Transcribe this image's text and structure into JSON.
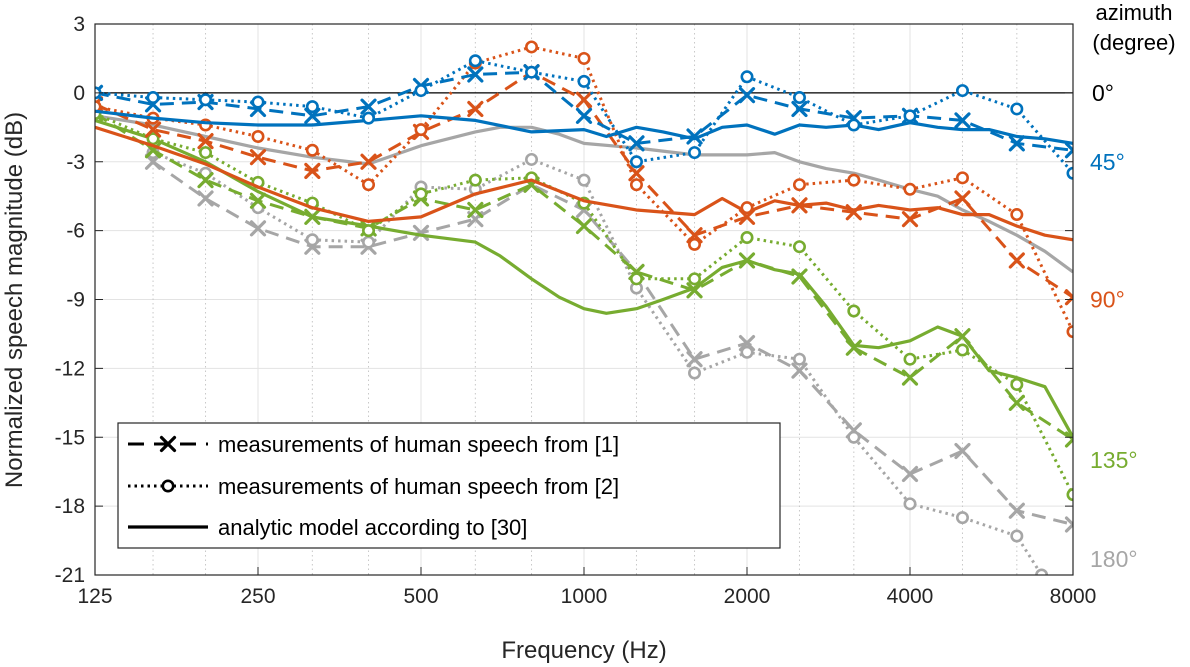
{
  "chart_data": {
    "type": "line",
    "xlabel": "Frequency (Hz)",
    "ylabel": "Normalized speech magnitude (dB)",
    "xscale": "log",
    "xlim": [
      125,
      8000
    ],
    "ylim": [
      -21,
      3
    ],
    "xticks": [
      125,
      250,
      500,
      1000,
      2000,
      4000,
      8000
    ],
    "xtick_labels": [
      "125",
      "250",
      "500",
      "1000",
      "2000",
      "4000",
      "8000"
    ],
    "minor_x_gridlines": [
      160,
      200,
      315,
      400,
      630,
      800,
      1250,
      1600,
      2500,
      3150,
      5000,
      6300
    ],
    "yticks": [
      3,
      0,
      -3,
      -6,
      -9,
      -12,
      -15,
      -18,
      -21
    ],
    "ytick_labels": [
      "3",
      "0",
      "-3",
      "-6",
      "-9",
      "-12",
      "-15",
      "-18",
      "-21"
    ],
    "grid": true,
    "zero_line": 0,
    "right_annotation_title": [
      "azimuth",
      "(degree)"
    ],
    "legend": {
      "placement": "bottom-left",
      "entries": [
        {
          "label": "measurements of human speech from [1]",
          "style": "dashed-x"
        },
        {
          "label": "measurements of human speech from [2]",
          "style": "dotted-o"
        },
        {
          "label": "analytic model according to [30]",
          "style": "solid"
        }
      ]
    },
    "colors": {
      "0": "#0072BD",
      "45": "#0072BD",
      "90": "#D95319",
      "135": "#77AC30",
      "180": "#A6A6A6"
    },
    "series": [
      {
        "azimuth_label": "45°",
        "color": "#0072BD",
        "label_y": -3,
        "dashed_x": {
          "x": [
            125,
            160,
            200,
            250,
            315,
            400,
            500,
            630,
            800,
            1000,
            1250,
            1600,
            2000,
            2500,
            3150,
            4000,
            5000,
            6300,
            8000
          ],
          "y": [
            0,
            -0.5,
            -0.4,
            -0.7,
            -1.0,
            -0.6,
            0.3,
            0.8,
            0.9,
            -1.0,
            -2.2,
            -1.9,
            -0.1,
            -0.7,
            -1.1,
            -1.0,
            -1.2,
            -2.2,
            -2.5
          ]
        },
        "dotted_o": {
          "x": [
            125,
            160,
            200,
            250,
            315,
            400,
            500,
            630,
            800,
            1000,
            1250,
            1600,
            2000,
            2500,
            3150,
            4000,
            5000,
            6300,
            8000
          ],
          "y": [
            0,
            -0.2,
            -0.3,
            -0.4,
            -0.6,
            -1.1,
            0.1,
            1.4,
            0.9,
            0.5,
            -3.0,
            -2.6,
            0.7,
            -0.2,
            -1.4,
            -1.0,
            0.1,
            -0.7,
            -3.5
          ]
        },
        "model": {
          "x": [
            125,
            160,
            200,
            250,
            315,
            400,
            500,
            630,
            800,
            1000,
            1100,
            1250,
            1400,
            1600,
            1800,
            2000,
            2250,
            2500,
            2800,
            3150,
            3500,
            4000,
            4500,
            5000,
            5600,
            6300,
            7100,
            8000
          ],
          "y": [
            -0.8,
            -1.1,
            -1.3,
            -1.4,
            -1.4,
            -1.2,
            -1.0,
            -1.2,
            -1.7,
            -1.6,
            -1.9,
            -1.5,
            -1.7,
            -2.0,
            -1.5,
            -1.4,
            -1.8,
            -1.4,
            -1.5,
            -1.4,
            -1.6,
            -1.3,
            -1.5,
            -1.6,
            -1.6,
            -1.9,
            -2.0,
            -2.2
          ]
        }
      },
      {
        "azimuth_label": "90°",
        "color": "#D95319",
        "label_y": -9,
        "dashed_x": {
          "x": [
            125,
            160,
            200,
            250,
            315,
            400,
            500,
            630,
            800,
            1000,
            1250,
            1600,
            2000,
            2500,
            3150,
            4000,
            5000,
            6300,
            8000
          ],
          "y": [
            -0.5,
            -1.6,
            -2.1,
            -2.8,
            -3.4,
            -3.0,
            -1.7,
            -0.7,
            0.9,
            -0.3,
            -3.5,
            -6.2,
            -5.4,
            -4.9,
            -5.2,
            -5.5,
            -4.6,
            -7.3,
            -8.9
          ]
        },
        "dotted_o": {
          "x": [
            125,
            160,
            200,
            250,
            315,
            400,
            500,
            630,
            800,
            1000,
            1250,
            1600,
            2000,
            2500,
            3150,
            4000,
            5000,
            6300,
            8000
          ],
          "y": [
            -0.6,
            -1.1,
            -1.4,
            -1.9,
            -2.5,
            -4.0,
            -1.6,
            1.3,
            2.0,
            1.5,
            -4.0,
            -6.6,
            -5.0,
            -4.0,
            -3.8,
            -4.2,
            -3.7,
            -5.3,
            -10.4
          ]
        },
        "model": {
          "x": [
            125,
            160,
            200,
            250,
            315,
            400,
            500,
            630,
            800,
            1000,
            1250,
            1600,
            1800,
            2000,
            2250,
            2500,
            2800,
            3150,
            3500,
            4000,
            4500,
            5000,
            5600,
            6300,
            7100,
            8000
          ],
          "y": [
            -1.5,
            -2.3,
            -3.1,
            -4.1,
            -5.0,
            -5.6,
            -5.4,
            -4.4,
            -3.8,
            -4.7,
            -5.1,
            -5.3,
            -4.6,
            -5.2,
            -4.7,
            -4.9,
            -4.8,
            -5.1,
            -4.9,
            -5.1,
            -5.0,
            -5.3,
            -5.3,
            -5.8,
            -6.2,
            -6.4
          ]
        }
      },
      {
        "azimuth_label": "135°",
        "color": "#77AC30",
        "label_y": -16,
        "dashed_x": {
          "x": [
            125,
            160,
            200,
            250,
            315,
            400,
            500,
            630,
            800,
            1000,
            1250,
            1600,
            2000,
            2500,
            3150,
            4000,
            5000,
            6300,
            8000
          ],
          "y": [
            -0.9,
            -2.5,
            -3.8,
            -4.7,
            -5.4,
            -5.9,
            -4.6,
            -5.1,
            -4.0,
            -5.8,
            -7.8,
            -8.6,
            -7.3,
            -8.0,
            -11.1,
            -12.4,
            -10.6,
            -13.5,
            -15.1
          ]
        },
        "dotted_o": {
          "x": [
            125,
            160,
            200,
            250,
            315,
            400,
            500,
            630,
            800,
            1000,
            1250,
            1600,
            2000,
            2500,
            3150,
            4000,
            5000,
            6300,
            8000
          ],
          "y": [
            -0.9,
            -2.0,
            -2.6,
            -3.9,
            -4.8,
            -6.0,
            -4.4,
            -3.8,
            -3.7,
            -4.8,
            -8.1,
            -8.1,
            -6.3,
            -6.7,
            -9.5,
            -11.6,
            -11.2,
            -12.7,
            -17.5
          ]
        },
        "model": {
          "x": [
            125,
            160,
            200,
            250,
            315,
            400,
            500,
            630,
            700,
            800,
            900,
            1000,
            1100,
            1250,
            1400,
            1600,
            1800,
            2000,
            2250,
            2500,
            2800,
            3150,
            3500,
            4000,
            4500,
            5000,
            5600,
            6300,
            7100,
            8000
          ],
          "y": [
            -1.2,
            -2.0,
            -3.0,
            -4.3,
            -5.4,
            -5.8,
            -6.2,
            -6.5,
            -7.1,
            -8.1,
            -8.9,
            -9.4,
            -9.6,
            -9.4,
            -9.0,
            -8.5,
            -7.6,
            -7.3,
            -7.7,
            -7.9,
            -9.3,
            -11.0,
            -11.1,
            -10.8,
            -10.2,
            -10.6,
            -12.1,
            -12.4,
            -12.8,
            -15.0
          ]
        }
      },
      {
        "azimuth_label": "180°",
        "color": "#A6A6A6",
        "label_y": -20.3,
        "dashed_x": {
          "x": [
            160,
            200,
            250,
            315,
            400,
            500,
            630,
            800,
            1000,
            1250,
            1600,
            2000,
            2500,
            3150,
            4000,
            5000,
            6300,
            8000
          ],
          "y": [
            -3.0,
            -4.6,
            -5.9,
            -6.7,
            -6.7,
            -6.1,
            -5.5,
            -4.0,
            -5.1,
            -7.8,
            -11.6,
            -10.9,
            -12.1,
            -14.7,
            -16.6,
            -15.6,
            -18.2,
            -18.8
          ]
        },
        "dotted_o": {
          "x": [
            160,
            200,
            250,
            315,
            400,
            500,
            630,
            800,
            1000,
            1250,
            1600,
            2000,
            2500,
            3150,
            4000,
            5000,
            6300,
            7000
          ],
          "y": [
            -2.6,
            -3.5,
            -5.0,
            -6.4,
            -6.5,
            -4.1,
            -4.2,
            -2.9,
            -3.8,
            -8.5,
            -12.2,
            -11.3,
            -11.6,
            -15.0,
            -17.9,
            -18.5,
            -19.3,
            -21.0
          ]
        },
        "model": {
          "x": [
            125,
            160,
            200,
            250,
            315,
            400,
            500,
            630,
            700,
            800,
            900,
            1000,
            1250,
            1600,
            2000,
            2250,
            2500,
            2800,
            3150,
            3500,
            4000,
            4500,
            5000,
            5600,
            6300,
            7100,
            8000
          ],
          "y": [
            -1.0,
            -1.4,
            -1.9,
            -2.4,
            -2.8,
            -3.1,
            -2.3,
            -1.7,
            -1.5,
            -1.5,
            -1.8,
            -2.2,
            -2.4,
            -2.7,
            -2.7,
            -2.6,
            -3.0,
            -3.3,
            -3.5,
            -3.8,
            -4.2,
            -4.5,
            -5.1,
            -5.6,
            -6.2,
            -6.9,
            -7.8
          ]
        }
      }
    ],
    "zero_label": "0°",
    "zero_label_y": 0
  }
}
